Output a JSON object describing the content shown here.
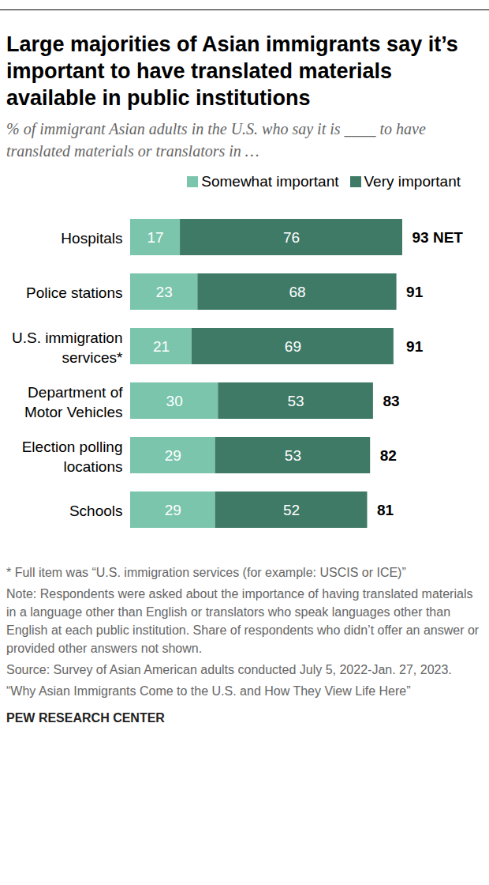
{
  "chart_data": {
    "type": "bar",
    "title": "Large majorities of Asian immigrants say it’s important to have translated materials available in public institutions",
    "subtitle": "% of immigrant Asian adults in the U.S. who say it is ____ to have translated materials or translators in …",
    "orientation": "horizontal",
    "stacked": true,
    "data_labels": true,
    "tick_labels": "y",
    "legend": "top-right",
    "categories": [
      "Hospitals",
      "Police stations",
      "U.S. immigration\nservices*",
      "Department of\nMotor Vehicles",
      "Election polling\nlocations",
      "Schools"
    ],
    "series": [
      {
        "name": "Somewhat important",
        "color": "#7bc5ad",
        "values": [
          17,
          23,
          21,
          30,
          29,
          29
        ]
      },
      {
        "name": "Very important",
        "color": "#3f7a67",
        "values": [
          76,
          68,
          69,
          53,
          53,
          52
        ]
      }
    ],
    "totals": {
      "values": [
        93,
        91,
        91,
        83,
        82,
        81
      ],
      "value_labels": [
        "93 NET",
        "91",
        "91",
        "83",
        "82",
        "81"
      ]
    },
    "notes": [
      "* Full item was “U.S. immigration services (for example: USCIS or ICE)”",
      "Note: Respondents were asked about the importance of having translated materials in a language other than English or translators who speak languages other than English at each public institution. Share of respondents who didn’t offer an answer or provided other answers not shown.",
      "Source: Survey of Asian American adults conducted July 5, 2022-Jan. 27, 2023.",
      "“Why Asian Immigrants Come to the U.S. and How They View Life Here”"
    ],
    "credit": "PEW RESEARCH CENTER"
  }
}
